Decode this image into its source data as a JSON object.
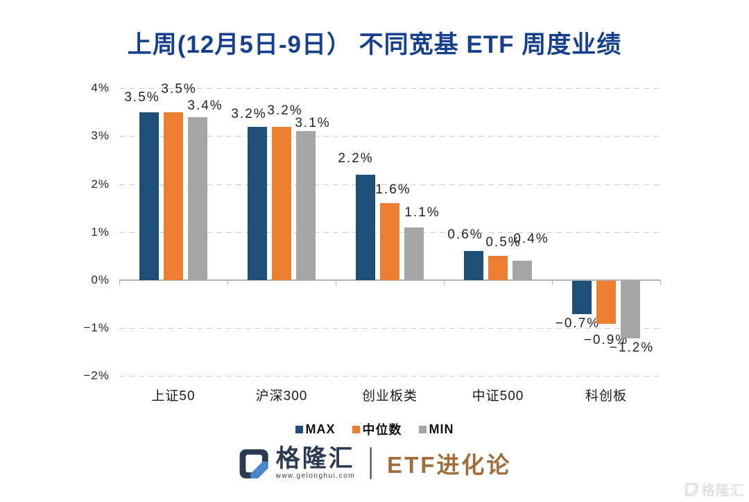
{
  "title": "上周(12月5日-9日） 不同宽基 ETF 周度业绩",
  "chart_data": {
    "type": "bar",
    "categories": [
      "上证50",
      "沪深300",
      "创业板类",
      "中证500",
      "科创板"
    ],
    "series": [
      {
        "name": "MAX",
        "color": "#1f4e79",
        "values": [
          3.5,
          3.2,
          2.2,
          0.6,
          -0.7
        ]
      },
      {
        "name": "中位数",
        "color": "#ed7d31",
        "values": [
          3.5,
          3.2,
          1.6,
          0.5,
          -0.9
        ]
      },
      {
        "name": "MIN",
        "color": "#a6a6a6",
        "values": [
          3.4,
          3.1,
          1.1,
          0.4,
          -1.2
        ]
      }
    ],
    "data_labels": [
      [
        "3.5%",
        "3.5%",
        "3.4%"
      ],
      [
        "3.2%",
        "3.2%",
        "3.1%"
      ],
      [
        "2.2%",
        "1.6%",
        "1.1%"
      ],
      [
        "0.6%",
        "0.5%",
        "0.4%"
      ],
      [
        "−0.7%",
        "−0.9%",
        "−1.2%"
      ]
    ],
    "y_ticks": [
      "4%",
      "3%",
      "2%",
      "1%",
      "0%",
      "−1%",
      "−2%"
    ],
    "y_tick_values": [
      4,
      3,
      2,
      1,
      0,
      -1,
      -2
    ],
    "ylim": [
      -2,
      4
    ],
    "grid": "dashed horizontal gridlines, solid zero axis",
    "legend_position": "bottom"
  },
  "legend": {
    "items": [
      {
        "label": "MAX",
        "color": "#1f4e79"
      },
      {
        "label": "中位数",
        "color": "#ed7d31"
      },
      {
        "label": "MIN",
        "color": "#a6a6a6"
      }
    ]
  },
  "footer": {
    "brand": "格隆汇",
    "url": "www.gelonghui.com",
    "tagline": "ETF进化论"
  },
  "watermark": {
    "text": "格隆汇"
  },
  "colors": {
    "title": "#17408c",
    "tagline": "#a06e3c",
    "brand_navy": "#2c3a52",
    "logo_blue": "#4a86c8",
    "axis": "#b3b3b3",
    "grid": "#cbcbcb",
    "watermark": "#e2e2e2"
  }
}
